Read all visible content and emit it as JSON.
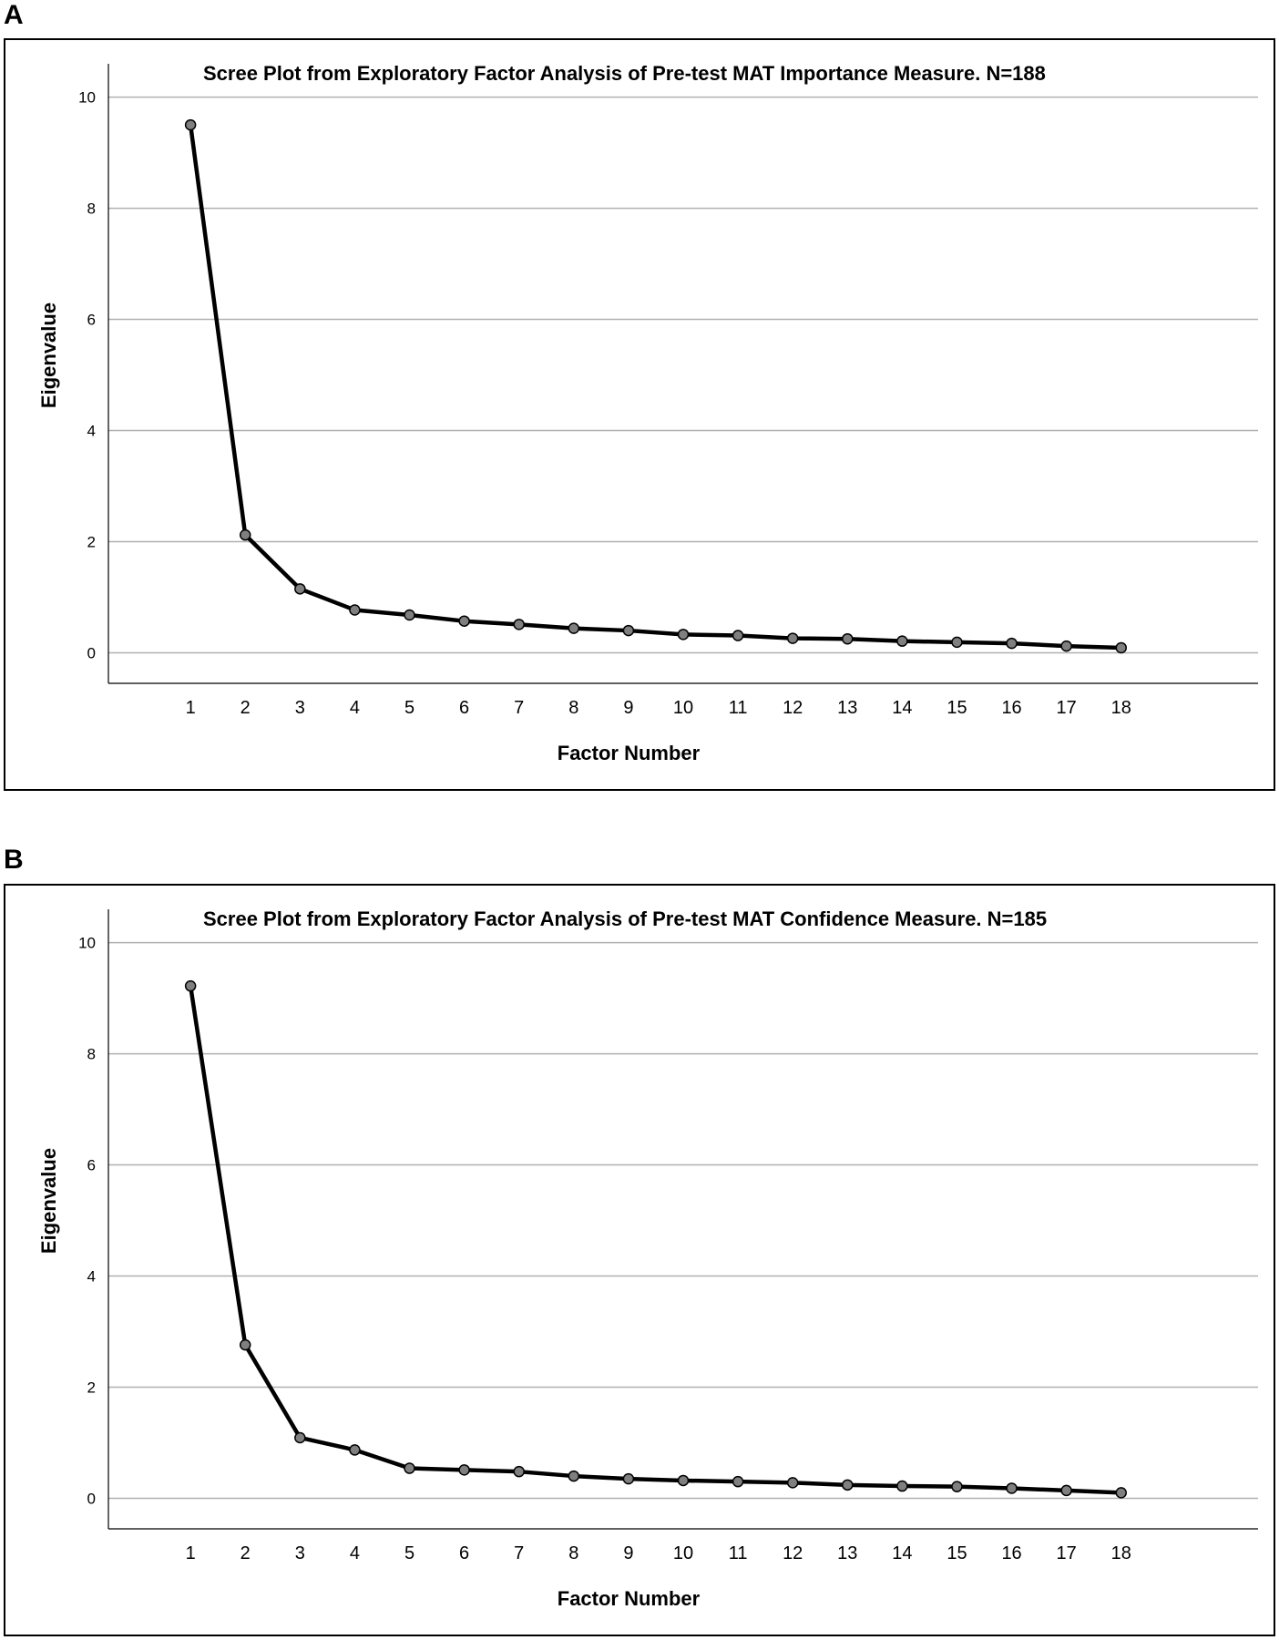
{
  "panels": [
    {
      "letter": "A"
    },
    {
      "letter": "B"
    }
  ],
  "colors": {
    "line": "#000000",
    "marker": "#7f7f7f",
    "grid": "#b0b0b0"
  },
  "chart_data": [
    {
      "type": "line",
      "title": "Scree Plot from Exploratory Factor Analysis of Pre-test MAT Importance Measure. N=188",
      "xlabel": "Factor Number",
      "ylabel": "Eigenvalue",
      "x": [
        1,
        2,
        3,
        4,
        5,
        6,
        7,
        8,
        9,
        10,
        11,
        12,
        13,
        14,
        15,
        16,
        17,
        18
      ],
      "y": [
        9.5,
        2.12,
        1.15,
        0.77,
        0.68,
        0.57,
        0.51,
        0.44,
        0.4,
        0.33,
        0.31,
        0.26,
        0.25,
        0.21,
        0.19,
        0.17,
        0.12,
        0.09
      ],
      "yticks": [
        0,
        2,
        4,
        6,
        8,
        10
      ],
      "ylim": [
        -0.55,
        10.6
      ],
      "xlim": [
        -0.5,
        20.5
      ],
      "grid": true
    },
    {
      "type": "line",
      "title": "Scree Plot from Exploratory Factor Analysis of Pre-test MAT Confidence Measure. N=185",
      "xlabel": "Factor Number",
      "ylabel": "Eigenvalue",
      "x": [
        1,
        2,
        3,
        4,
        5,
        6,
        7,
        8,
        9,
        10,
        11,
        12,
        13,
        14,
        15,
        16,
        17,
        18
      ],
      "y": [
        9.22,
        2.76,
        1.09,
        0.87,
        0.54,
        0.51,
        0.48,
        0.4,
        0.35,
        0.32,
        0.3,
        0.28,
        0.24,
        0.22,
        0.21,
        0.18,
        0.14,
        0.1
      ],
      "yticks": [
        0,
        2,
        4,
        6,
        8,
        10
      ],
      "ylim": [
        -0.55,
        10.6
      ],
      "xlim": [
        -0.5,
        20.5
      ],
      "grid": true
    }
  ]
}
